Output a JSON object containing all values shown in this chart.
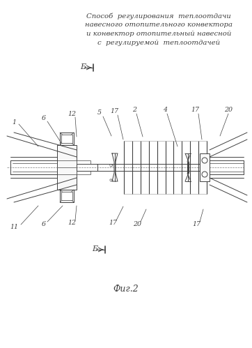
{
  "title_lines": [
    "Способ  регулирования  теплоотдачи",
    "навесного отопительного конвектора",
    "и конвектор отопительный навесной",
    "с  регулируемой  теплоотдачей"
  ],
  "fig_label": "Фиг.2",
  "bg_color": "#ffffff",
  "line_color": "#404040",
  "lw": 0.7
}
